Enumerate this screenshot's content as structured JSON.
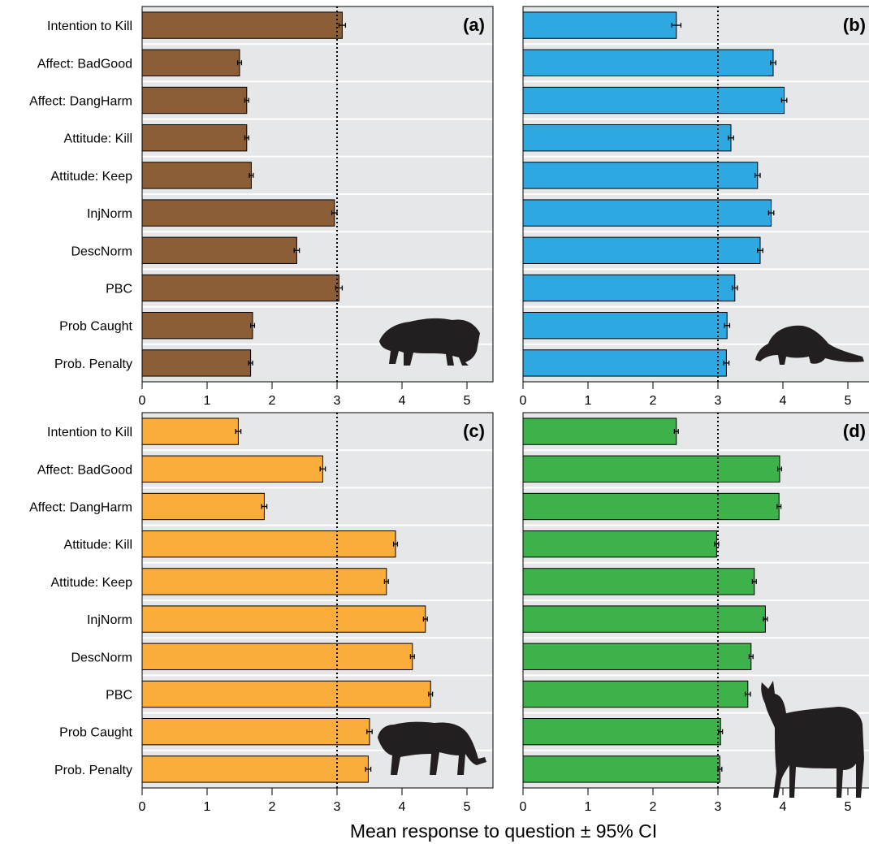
{
  "chart_data": {
    "type": "bar",
    "orientation": "horizontal",
    "xlabel": "Mean response to question ± 95% CI",
    "xlim": [
      0,
      5.4
    ],
    "xticks": [
      0,
      1,
      2,
      3,
      4,
      5
    ],
    "reference_line": 3,
    "grid": "horizontal white separators between bars",
    "categories": [
      "Intention to Kill",
      "Affect: BadGood",
      "Affect: DangHarm",
      "Attitude: Kill",
      "Attitude: Keep",
      "InjNorm",
      "DescNorm",
      "PBC",
      "Prob Caught",
      "Prob. Penalty"
    ],
    "panels": [
      {
        "label": "(a)",
        "animal_icon": "wild-boar-icon",
        "color": "#8c5e36",
        "values": [
          3.08,
          1.5,
          1.61,
          1.61,
          1.68,
          2.96,
          2.38,
          3.03,
          1.7,
          1.67
        ],
        "ci": [
          0.05,
          0.03,
          0.03,
          0.03,
          0.03,
          0.04,
          0.04,
          0.05,
          0.03,
          0.03
        ]
      },
      {
        "label": "(b)",
        "animal_icon": "pangolin-icon",
        "color": "#2ea8e0",
        "values": [
          2.36,
          3.85,
          4.02,
          3.2,
          3.61,
          3.82,
          3.65,
          3.26,
          3.14,
          3.13
        ],
        "ci": [
          0.07,
          0.04,
          0.04,
          0.04,
          0.04,
          0.04,
          0.04,
          0.04,
          0.04,
          0.04
        ]
      },
      {
        "label": "(c)",
        "animal_icon": "tiger-icon",
        "color": "#fbad3c",
        "values": [
          1.48,
          2.78,
          1.88,
          3.9,
          3.76,
          4.36,
          4.16,
          4.44,
          3.5,
          3.48
        ],
        "ci": [
          0.04,
          0.04,
          0.04,
          0.03,
          0.03,
          0.03,
          0.03,
          0.03,
          0.04,
          0.04
        ]
      },
      {
        "label": "(d)",
        "animal_icon": "deer-icon",
        "color": "#3db24a",
        "values": [
          2.36,
          3.95,
          3.94,
          2.98,
          3.56,
          3.73,
          3.51,
          3.46,
          3.04,
          3.03
        ],
        "ci": [
          0.03,
          0.03,
          0.03,
          0.03,
          0.03,
          0.03,
          0.03,
          0.04,
          0.03,
          0.03
        ]
      }
    ]
  }
}
